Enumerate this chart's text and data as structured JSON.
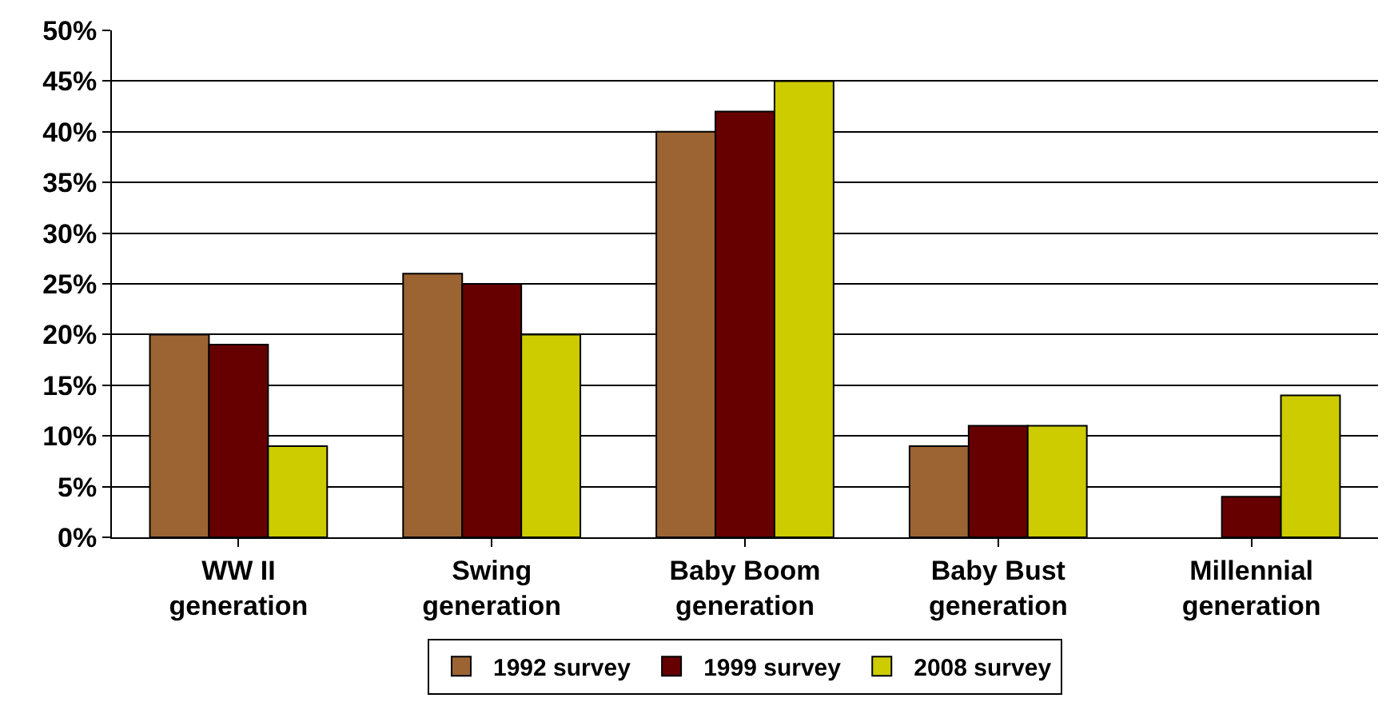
{
  "chart_data": {
    "type": "bar",
    "categories": [
      "WW II\ngeneration",
      "Swing\ngeneration",
      "Baby Boom\ngeneration",
      "Baby Bust\ngeneration",
      "Millennial\ngeneration"
    ],
    "series": [
      {
        "name": "1992 survey",
        "color": "#9c6433",
        "values": [
          20,
          26,
          40,
          9,
          null
        ]
      },
      {
        "name": "1999 survey",
        "color": "#660000",
        "values": [
          19,
          25,
          42,
          11,
          4
        ]
      },
      {
        "name": "2008 survey",
        "color": "#cccc00",
        "values": [
          9,
          20,
          45,
          11,
          14
        ]
      }
    ],
    "ylim": [
      0,
      50
    ],
    "yticks": [
      {
        "value": 0,
        "label": "0%"
      },
      {
        "value": 5,
        "label": "5%"
      },
      {
        "value": 10,
        "label": "10%"
      },
      {
        "value": 15,
        "label": "15%"
      },
      {
        "value": 20,
        "label": "20%"
      },
      {
        "value": 25,
        "label": "25%"
      },
      {
        "value": 30,
        "label": "30%"
      },
      {
        "value": 35,
        "label": "35%"
      },
      {
        "value": 40,
        "label": "40%"
      },
      {
        "value": 45,
        "label": "45%"
      },
      {
        "value": 50,
        "label": "50%"
      }
    ],
    "grid": "y",
    "legend": "bottom"
  }
}
